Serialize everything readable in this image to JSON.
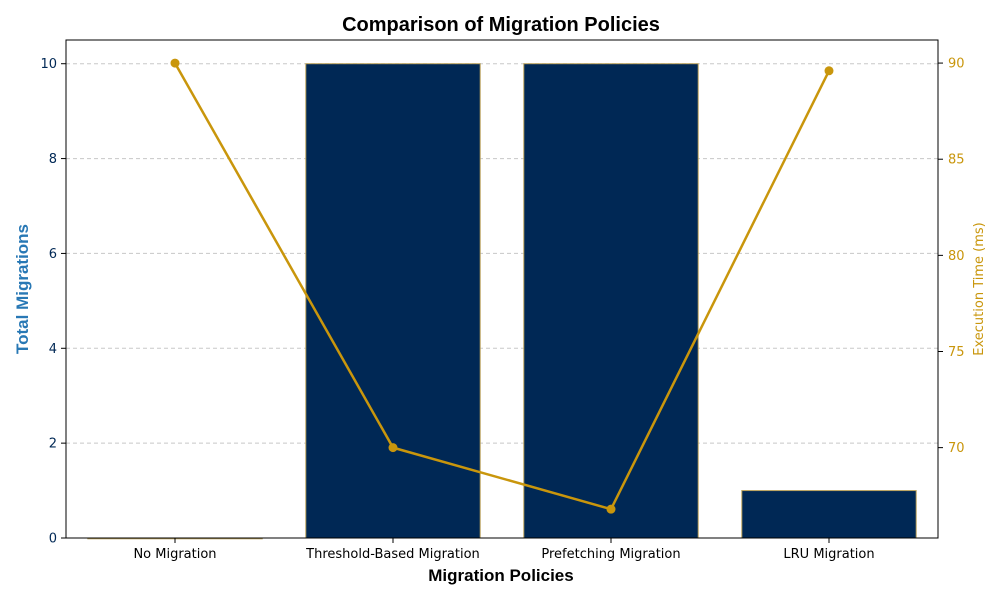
{
  "chart_data": {
    "type": "bar+line",
    "title": "Comparison of Migration Policies",
    "xlabel": "Migration Policies",
    "categories": [
      "No Migration",
      "Threshold-Based Migration",
      "Prefetching Migration",
      "LRU Migration"
    ],
    "bars": {
      "ylabel": "Total Migrations",
      "values": [
        0,
        10,
        10,
        1
      ],
      "ylim": [
        0,
        10.5
      ],
      "yticks": [
        0,
        2,
        4,
        6,
        8,
        10
      ],
      "color": "#002855",
      "edge_color": "#b8a05a"
    },
    "line": {
      "ylabel": "Execution Time (ms)",
      "values": [
        90.0,
        70.0,
        66.8,
        89.6
      ],
      "ylim": [
        65.3,
        91.2
      ],
      "yticks": [
        70,
        75,
        80,
        85,
        90
      ],
      "color": "#c9960c"
    },
    "colors": {
      "left_axis_label": "#2878b5",
      "left_tick": "#002855",
      "right_axis": "#c9960c",
      "grid": "#c8c8c8"
    },
    "grid": true
  }
}
